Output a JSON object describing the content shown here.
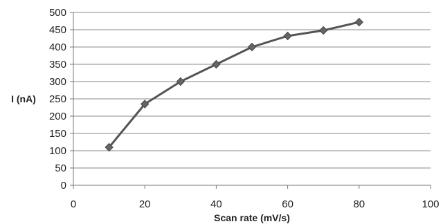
{
  "chart_data": {
    "type": "line",
    "title": "",
    "xlabel": "Scan rate (mV/s)",
    "ylabel": "I (nA)",
    "xlim": [
      0,
      100
    ],
    "ylim": [
      0,
      500
    ],
    "x_ticks": [
      0,
      20,
      40,
      60,
      80,
      100
    ],
    "y_ticks": [
      0,
      50,
      100,
      150,
      200,
      250,
      300,
      350,
      400,
      450,
      500
    ],
    "grid": "horizontal",
    "legend": "none",
    "marker": "diamond",
    "series_color": "#555555",
    "marker_color": "#666666",
    "series": [
      {
        "x": [
          10,
          20,
          30,
          40,
          50,
          60,
          70,
          80
        ],
        "y": [
          110,
          235,
          300,
          350,
          400,
          432,
          448,
          472
        ]
      }
    ]
  }
}
